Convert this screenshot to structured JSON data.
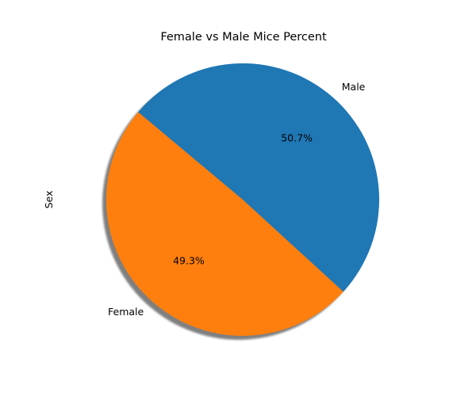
{
  "chart_data": {
    "type": "pie",
    "title": "Female vs Male Mice Percent",
    "ylabel": "Sex",
    "slices": [
      {
        "label": "Female",
        "value": 49.3,
        "pct_label": "49.3%",
        "color": "#ff7f0e"
      },
      {
        "label": "Male",
        "value": 50.7,
        "pct_label": "50.7%",
        "color": "#1f77b4"
      }
    ],
    "start_angle_deg": 140,
    "shadow": true,
    "counterclockwise": true
  }
}
